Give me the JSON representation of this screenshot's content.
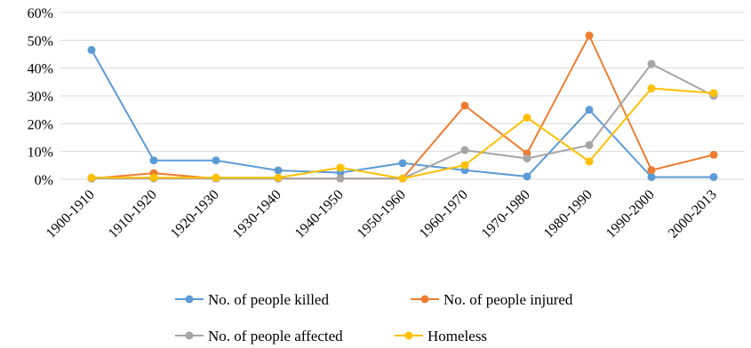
{
  "chart_data": {
    "type": "line",
    "title": "",
    "xlabel": "",
    "ylabel": "",
    "categories": [
      "1900-1910",
      "1910-1920",
      "1920-1930",
      "1930-1940",
      "1940-1950",
      "1950-1960",
      "1960-1970",
      "1970-1980",
      "1980-1990",
      "1990-2000",
      "2000-2013"
    ],
    "ylim": [
      0,
      60
    ],
    "yticks": [
      0,
      10,
      20,
      30,
      40,
      50,
      60
    ],
    "ytick_labels": [
      "0%",
      "10%",
      "20%",
      "30%",
      "40%",
      "50%",
      "60%"
    ],
    "grid": true,
    "legend_position": "bottom",
    "series": [
      {
        "name": "No. of people killed",
        "color": "#5B9BD5",
        "values": [
          46.5,
          6.8,
          6.8,
          3.2,
          2.4,
          5.8,
          3.3,
          1.0,
          25.0,
          0.8,
          0.8
        ]
      },
      {
        "name": "No. of people injured",
        "color": "#ED7D31",
        "values": [
          0.3,
          2.2,
          0.3,
          0.3,
          0.3,
          0.3,
          26.5,
          9.3,
          51.7,
          3.3,
          8.8
        ]
      },
      {
        "name": "No. of people affected",
        "color": "#A5A5A5",
        "values": [
          0.3,
          0.3,
          0.3,
          0.3,
          0.3,
          0.3,
          10.5,
          7.5,
          12.3,
          41.5,
          30.0
        ]
      },
      {
        "name": "Homeless",
        "color": "#FFC000",
        "values": [
          0.6,
          0.6,
          0.6,
          0.6,
          4.2,
          0.3,
          5.1,
          22.2,
          6.4,
          32.7,
          31.0
        ]
      }
    ]
  }
}
